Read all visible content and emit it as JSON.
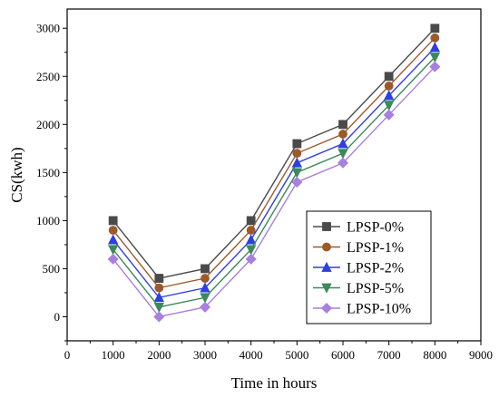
{
  "chart_data": {
    "type": "line",
    "title": "",
    "xlabel": "Time in hours",
    "ylabel": "CS(kwh)",
    "xlim": [
      0,
      9000
    ],
    "ylim": [
      -250,
      3200
    ],
    "xticks": [
      0,
      1000,
      2000,
      3000,
      4000,
      5000,
      6000,
      7000,
      8000,
      9000
    ],
    "yticks": [
      0,
      500,
      1000,
      1500,
      2000,
      2500,
      3000
    ],
    "x": [
      1000,
      2000,
      3000,
      4000,
      5000,
      6000,
      7000,
      8000
    ],
    "grid": false,
    "legend_position": "bottom-right",
    "series": [
      {
        "name": "LPSP-0%",
        "color": "#4a4a4a",
        "marker": "square",
        "values": [
          1000,
          400,
          500,
          1000,
          1800,
          2000,
          2500,
          3000
        ]
      },
      {
        "name": "LPSP-1%",
        "color": "#9c5a2a",
        "marker": "circle",
        "values": [
          900,
          300,
          400,
          900,
          1700,
          1900,
          2400,
          2900
        ]
      },
      {
        "name": "LPSP-2%",
        "color": "#2f3fe0",
        "marker": "triangle-up",
        "values": [
          800,
          200,
          300,
          800,
          1600,
          1800,
          2300,
          2800
        ]
      },
      {
        "name": "LPSP-5%",
        "color": "#3a8a5a",
        "marker": "triangle-down",
        "values": [
          700,
          100,
          200,
          700,
          1500,
          1700,
          2200,
          2700
        ]
      },
      {
        "name": "LPSP-10%",
        "color": "#a97fe0",
        "marker": "diamond",
        "values": [
          600,
          0,
          100,
          600,
          1400,
          1600,
          2100,
          2600
        ]
      }
    ]
  }
}
